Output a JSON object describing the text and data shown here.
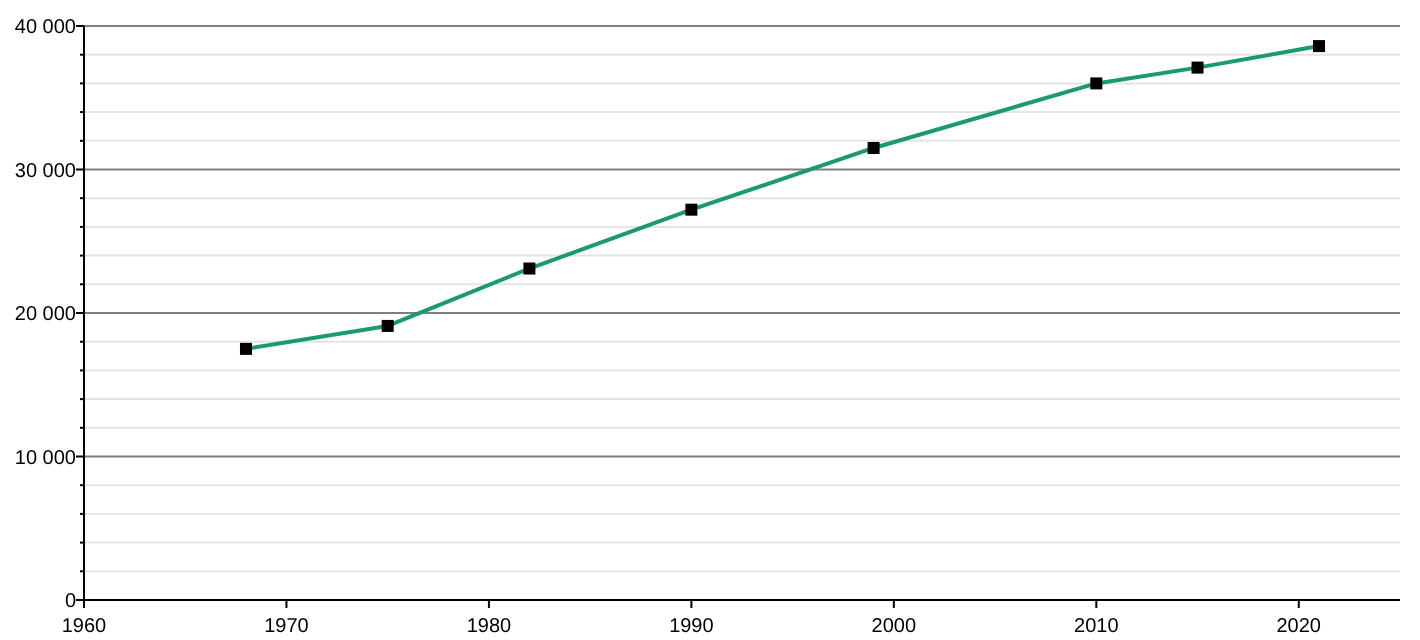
{
  "chart_data": {
    "type": "line",
    "x": [
      1968,
      1975,
      1982,
      1990,
      1999,
      2010,
      2015,
      2021
    ],
    "series": [
      {
        "color": "#1a9a72",
        "values": [
          17500,
          19100,
          23100,
          27200,
          31500,
          36000,
          37100,
          38600
        ]
      }
    ],
    "xlim": [
      1960,
      2025
    ],
    "xticks": [
      1960,
      1970,
      1980,
      1990,
      2000,
      2010,
      2020
    ],
    "ylim": [
      0,
      40000
    ],
    "yticks": [
      {
        "value": 0,
        "label": "0"
      },
      {
        "value": 2000,
        "label": null
      },
      {
        "value": 4000,
        "label": null
      },
      {
        "value": 6000,
        "label": null
      },
      {
        "value": 8000,
        "label": null
      },
      {
        "value": 10000,
        "label": "10 000"
      },
      {
        "value": 12000,
        "label": null
      },
      {
        "value": 14000,
        "label": null
      },
      {
        "value": 16000,
        "label": null
      },
      {
        "value": 18000,
        "label": null
      },
      {
        "value": 20000,
        "label": "20 000"
      },
      {
        "value": 22000,
        "label": null
      },
      {
        "value": 24000,
        "label": null
      },
      {
        "value": 26000,
        "label": null
      },
      {
        "value": 28000,
        "label": null
      },
      {
        "value": 30000,
        "label": "30 000"
      },
      {
        "value": 32000,
        "label": null
      },
      {
        "value": 34000,
        "label": null
      },
      {
        "value": 36000,
        "label": null
      },
      {
        "value": 38000,
        "label": null
      },
      {
        "value": 40000,
        "label": "40 000"
      }
    ],
    "grid": "y",
    "marker": "square",
    "line_style": "solid"
  }
}
